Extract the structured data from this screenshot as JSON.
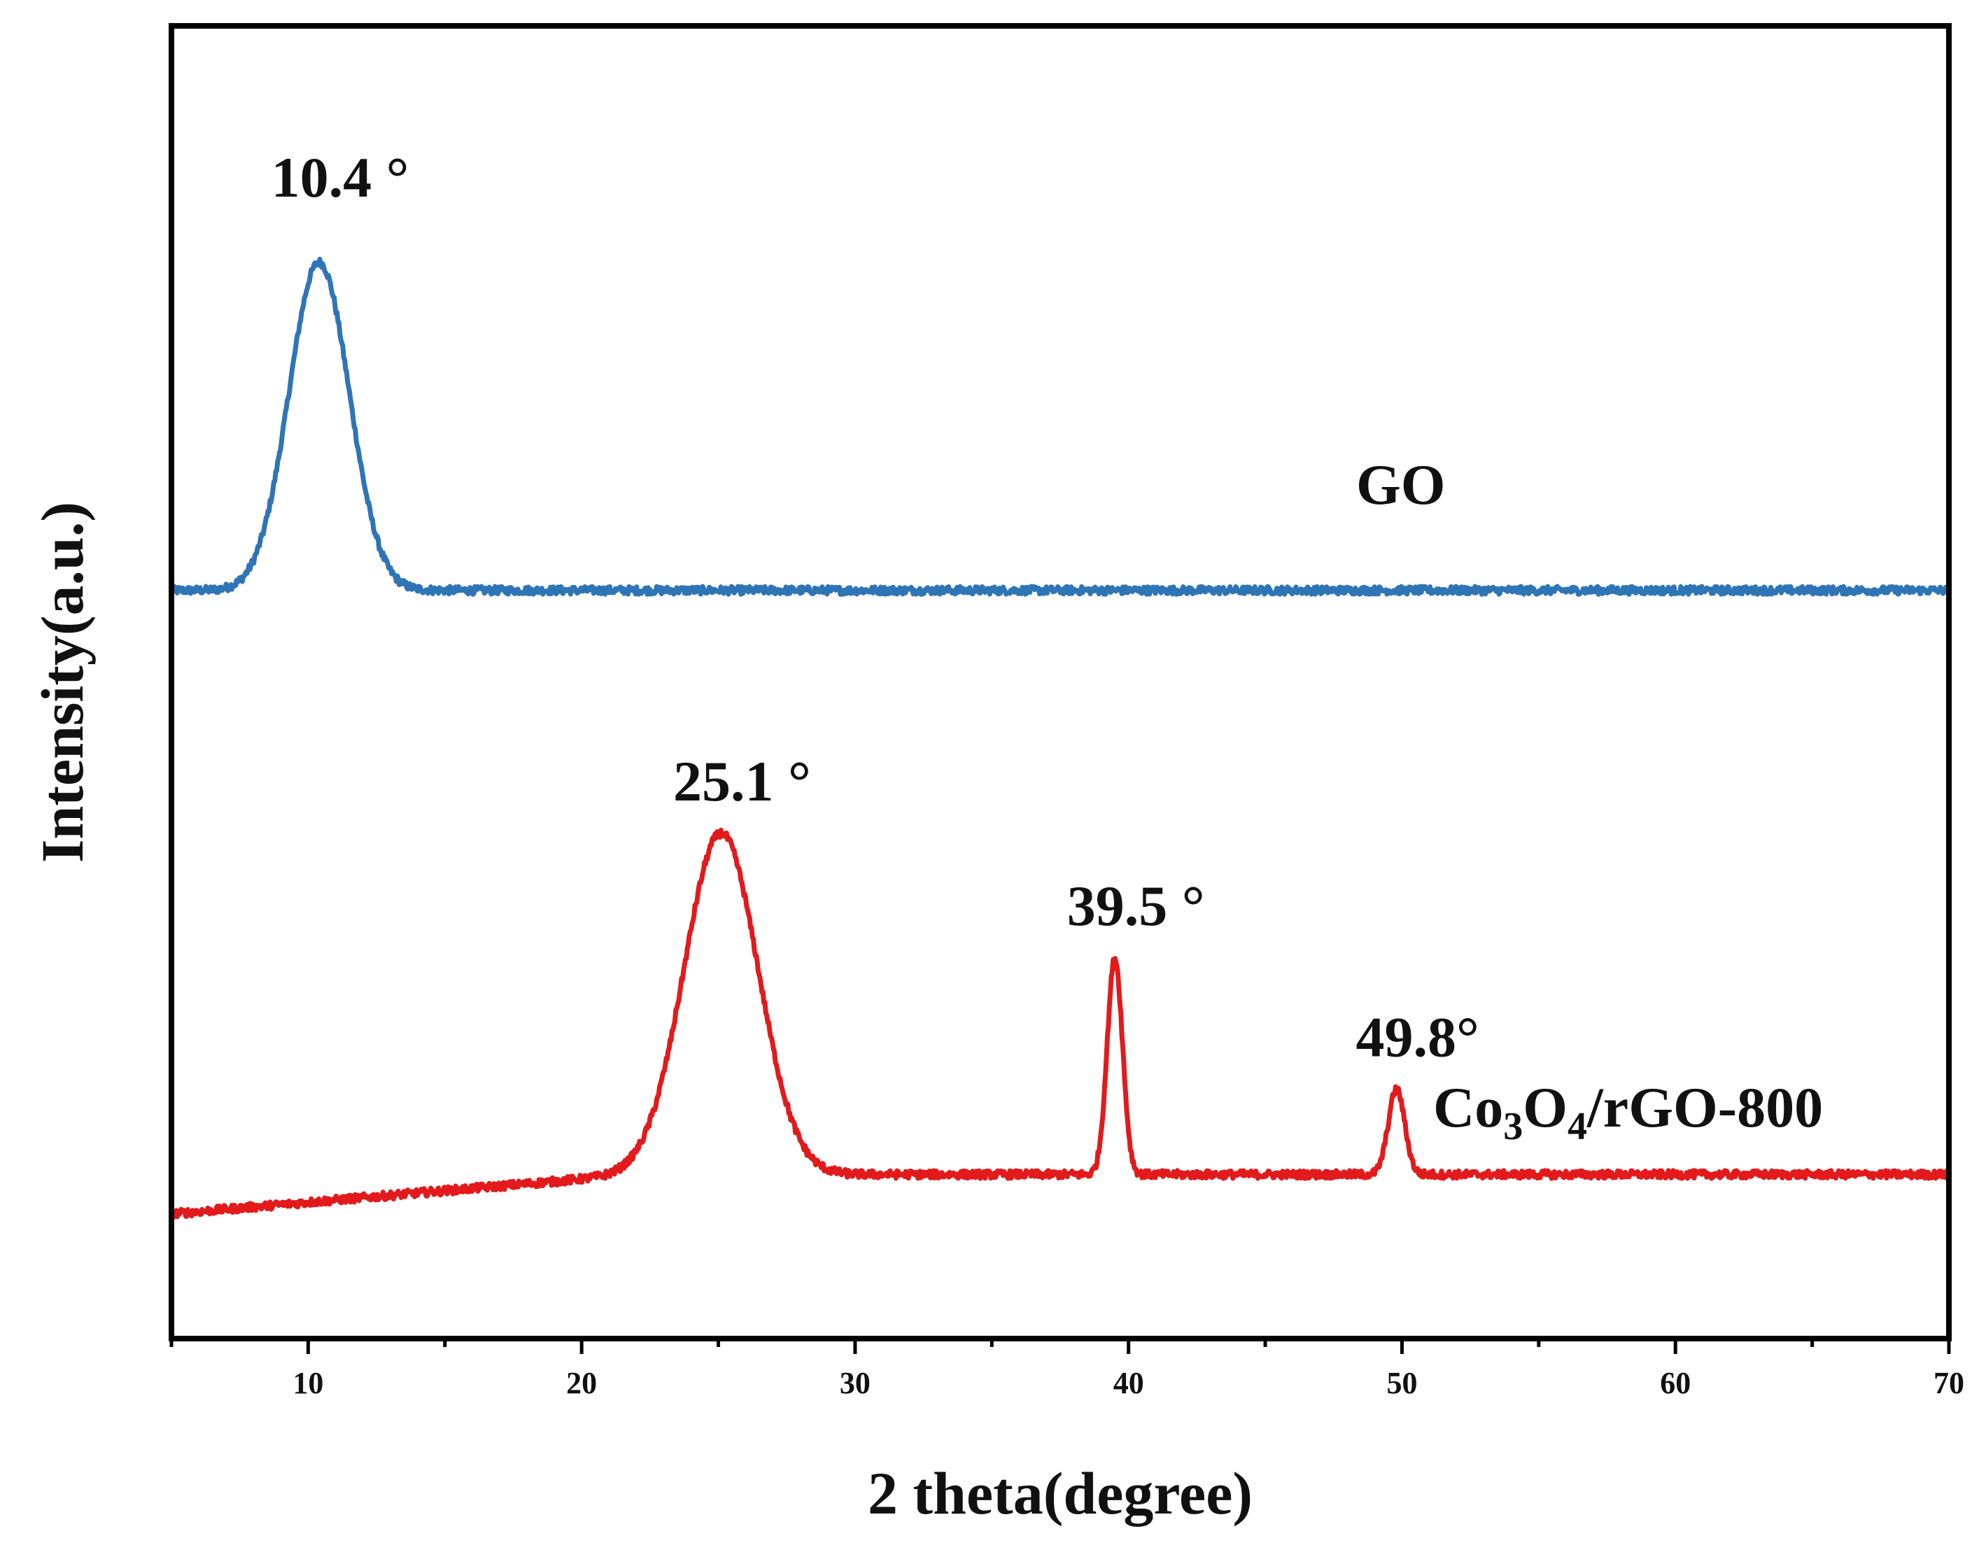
{
  "chart_data": {
    "type": "line",
    "title": "",
    "xlabel": "2 theta(degree)",
    "ylabel": "Intensity(a.u.)",
    "xlim": [
      5,
      70
    ],
    "ylim": [
      0,
      100
    ],
    "x_ticks": [
      10,
      20,
      30,
      40,
      50,
      60,
      70
    ],
    "x_tick_labels": [
      "10",
      "20",
      "30",
      "40",
      "50",
      "60",
      "70"
    ],
    "y_tick_labels_shown": false,
    "grid": false,
    "series": [
      {
        "name": "GO",
        "label_text": "GO",
        "color": "#2e75b6",
        "baseline": 57,
        "peaks": [
          {
            "center": 10.4,
            "height": 25,
            "width": 1.1
          }
        ],
        "noise": 0.3
      },
      {
        "name": "Co3O4/rGO-800",
        "label_main": "Co",
        "label_sub1": "3",
        "label_mid": "O",
        "label_sub2": "4",
        "label_tail": "/rGO-800",
        "color": "#e31a1c",
        "baseline_start": 9.5,
        "baseline_plateau": 12.5,
        "peaks": [
          {
            "center": 25.1,
            "height": 26,
            "width": 1.35
          },
          {
            "center": 39.5,
            "height": 16.5,
            "width": 0.28
          },
          {
            "center": 49.8,
            "height": 6.5,
            "width": 0.3
          }
        ],
        "noise": 0.3
      }
    ],
    "annotations": [
      {
        "text": "10.4 °",
        "x": 10.4,
        "y": 87
      },
      {
        "text": "25.1 °",
        "x": 25.1,
        "y": 41
      },
      {
        "text": "39.5 °",
        "x": 39.5,
        "y": 31.5
      },
      {
        "text": "49.8°",
        "x": 49.8,
        "y": 21.5
      }
    ]
  }
}
